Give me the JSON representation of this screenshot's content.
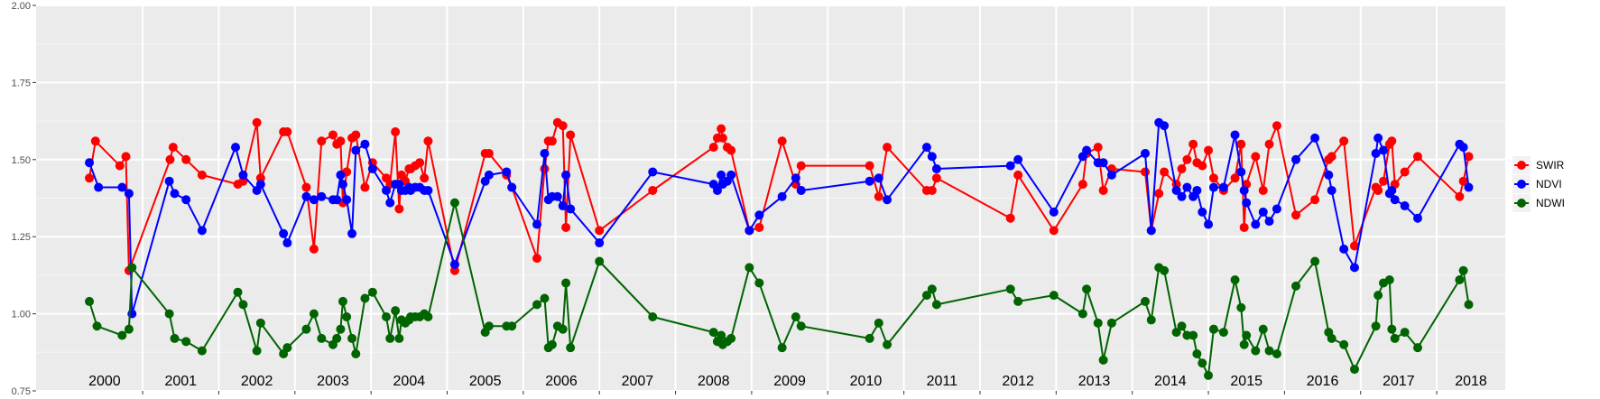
{
  "chart_data": {
    "type": "line",
    "title": "",
    "xlabel": "",
    "ylabel": "",
    "xlim": [
      1999.6,
      2018.9
    ],
    "ylim": [
      0.75,
      2.0
    ],
    "y_ticks": [
      0.75,
      1.0,
      1.25,
      1.5,
      1.75,
      2.0
    ],
    "y_tick_labels": [
      "0.75",
      "1.00",
      "1.25",
      "1.50",
      "1.75",
      "2.00"
    ],
    "year_bands": [
      2000,
      2001,
      2002,
      2003,
      2004,
      2005,
      2006,
      2007,
      2008,
      2009,
      2010,
      2011,
      2012,
      2013,
      2014,
      2015,
      2016,
      2017,
      2018
    ],
    "year_labels": [
      "2000",
      "2001",
      "2002",
      "2003",
      "2004",
      "2005",
      "2006",
      "2007",
      "2008",
      "2009",
      "2010",
      "2011",
      "2012",
      "2013",
      "2014",
      "2015",
      "2016",
      "2017",
      "2018"
    ],
    "grid": true,
    "legend_position": "right",
    "series": [
      {
        "name": "SWIR",
        "color": "#ff0000",
        "x": [
          2000.3,
          2000.38,
          2000.7,
          2000.78,
          2000.82,
          2001.36,
          2001.4,
          2001.57,
          2001.78,
          2002.25,
          2002.32,
          2002.5,
          2002.55,
          2002.85,
          2002.9,
          2003.15,
          2003.25,
          2003.35,
          2003.5,
          2003.55,
          2003.6,
          2003.63,
          2003.68,
          2003.75,
          2003.8,
          2003.92,
          2004.02,
          2004.2,
          2004.25,
          2004.32,
          2004.37,
          2004.4,
          2004.45,
          2004.5,
          2004.52,
          2004.58,
          2004.64,
          2004.7,
          2004.75,
          2005.1,
          2005.5,
          2005.55,
          2005.78,
          2005.85,
          2006.18,
          2006.28,
          2006.33,
          2006.38,
          2006.45,
          2006.52,
          2006.56,
          2006.62,
          2007.0,
          2007.7,
          2008.5,
          2008.55,
          2008.6,
          2008.62,
          2008.68,
          2008.73,
          2008.97,
          2009.1,
          2009.4,
          2009.58,
          2009.65,
          2010.55,
          2010.67,
          2010.78,
          2011.3,
          2011.37,
          2011.43,
          2012.4,
          2012.5,
          2012.97,
          2013.35,
          2013.4,
          2013.55,
          2013.62,
          2013.73,
          2014.17,
          2014.25,
          2014.35,
          2014.42,
          2014.58,
          2014.65,
          2014.72,
          2014.8,
          2014.85,
          2014.92,
          2015.0,
          2015.07,
          2015.2,
          2015.35,
          2015.43,
          2015.47,
          2015.5,
          2015.62,
          2015.72,
          2015.8,
          2015.9,
          2016.15,
          2016.4,
          2016.58,
          2016.62,
          2016.78,
          2016.92,
          2017.2,
          2017.23,
          2017.3,
          2017.38,
          2017.41,
          2017.45,
          2017.58,
          2017.75,
          2018.3,
          2018.35,
          2018.42
        ],
        "y": [
          1.44,
          1.56,
          1.48,
          1.51,
          1.14,
          1.5,
          1.54,
          1.5,
          1.45,
          1.42,
          1.43,
          1.62,
          1.44,
          1.59,
          1.59,
          1.41,
          1.21,
          1.56,
          1.58,
          1.55,
          1.56,
          1.36,
          1.46,
          1.57,
          1.58,
          1.41,
          1.49,
          1.44,
          1.42,
          1.59,
          1.34,
          1.45,
          1.43,
          1.47,
          1.47,
          1.48,
          1.49,
          1.44,
          1.56,
          1.14,
          1.52,
          1.52,
          1.45,
          1.41,
          1.18,
          1.47,
          1.56,
          1.56,
          1.62,
          1.61,
          1.28,
          1.58,
          1.27,
          1.4,
          1.54,
          1.57,
          1.6,
          1.57,
          1.54,
          1.53,
          1.27,
          1.28,
          1.56,
          1.42,
          1.48,
          1.48,
          1.38,
          1.54,
          1.4,
          1.4,
          1.44,
          1.31,
          1.45,
          1.27,
          1.42,
          1.52,
          1.54,
          1.4,
          1.47,
          1.46,
          1.27,
          1.39,
          1.46,
          1.42,
          1.47,
          1.5,
          1.55,
          1.49,
          1.48,
          1.53,
          1.44,
          1.4,
          1.44,
          1.55,
          1.28,
          1.42,
          1.51,
          1.4,
          1.55,
          1.61,
          1.32,
          1.37,
          1.5,
          1.51,
          1.56,
          1.22,
          1.41,
          1.4,
          1.43,
          1.55,
          1.56,
          1.42,
          1.46,
          1.51,
          1.38,
          1.43,
          1.51
        ]
      },
      {
        "name": "NDVI",
        "color": "#0000ff",
        "x": [
          2000.3,
          2000.42,
          2000.73,
          2000.82,
          2000.86,
          2001.35,
          2001.42,
          2001.57,
          2001.78,
          2002.22,
          2002.32,
          2002.5,
          2002.55,
          2002.85,
          2002.9,
          2003.15,
          2003.25,
          2003.35,
          2003.5,
          2003.55,
          2003.6,
          2003.63,
          2003.68,
          2003.75,
          2003.8,
          2003.92,
          2004.02,
          2004.2,
          2004.25,
          2004.32,
          2004.37,
          2004.4,
          2004.45,
          2004.5,
          2004.52,
          2004.58,
          2004.64,
          2004.7,
          2004.75,
          2005.1,
          2005.5,
          2005.55,
          2005.78,
          2005.85,
          2006.18,
          2006.28,
          2006.33,
          2006.38,
          2006.45,
          2006.52,
          2006.56,
          2006.62,
          2007.0,
          2007.7,
          2008.5,
          2008.55,
          2008.6,
          2008.62,
          2008.68,
          2008.73,
          2008.97,
          2009.1,
          2009.4,
          2009.58,
          2009.65,
          2010.55,
          2010.67,
          2010.78,
          2011.3,
          2011.37,
          2011.43,
          2012.4,
          2012.5,
          2012.97,
          2013.35,
          2013.4,
          2013.55,
          2013.62,
          2013.73,
          2014.17,
          2014.25,
          2014.35,
          2014.42,
          2014.58,
          2014.65,
          2014.72,
          2014.8,
          2014.85,
          2014.92,
          2015.0,
          2015.07,
          2015.2,
          2015.35,
          2015.43,
          2015.47,
          2015.5,
          2015.62,
          2015.72,
          2015.8,
          2015.9,
          2016.15,
          2016.4,
          2016.58,
          2016.62,
          2016.78,
          2016.92,
          2017.2,
          2017.23,
          2017.3,
          2017.38,
          2017.41,
          2017.45,
          2017.58,
          2017.75,
          2018.3,
          2018.35,
          2018.42
        ],
        "y": [
          1.49,
          1.41,
          1.41,
          1.39,
          1.0,
          1.43,
          1.39,
          1.37,
          1.27,
          1.54,
          1.45,
          1.4,
          1.42,
          1.26,
          1.23,
          1.38,
          1.37,
          1.38,
          1.37,
          1.37,
          1.45,
          1.42,
          1.37,
          1.26,
          1.53,
          1.55,
          1.47,
          1.4,
          1.36,
          1.42,
          1.42,
          1.4,
          1.4,
          1.41,
          1.4,
          1.41,
          1.41,
          1.4,
          1.4,
          1.16,
          1.43,
          1.45,
          1.46,
          1.41,
          1.29,
          1.52,
          1.37,
          1.38,
          1.38,
          1.35,
          1.45,
          1.34,
          1.23,
          1.46,
          1.42,
          1.4,
          1.45,
          1.42,
          1.43,
          1.45,
          1.27,
          1.32,
          1.38,
          1.44,
          1.4,
          1.43,
          1.44,
          1.37,
          1.54,
          1.51,
          1.47,
          1.48,
          1.5,
          1.33,
          1.51,
          1.53,
          1.49,
          1.49,
          1.45,
          1.52,
          1.27,
          1.62,
          1.61,
          1.4,
          1.38,
          1.41,
          1.38,
          1.4,
          1.33,
          1.29,
          1.41,
          1.41,
          1.58,
          1.46,
          1.4,
          1.36,
          1.29,
          1.33,
          1.3,
          1.34,
          1.5,
          1.57,
          1.45,
          1.4,
          1.21,
          1.15,
          1.52,
          1.57,
          1.53,
          1.39,
          1.4,
          1.37,
          1.35,
          1.31,
          1.55,
          1.54,
          1.41
        ]
      },
      {
        "name": "NDWI",
        "color": "#006400",
        "x": [
          2000.3,
          2000.4,
          2000.73,
          2000.82,
          2000.86,
          2001.35,
          2001.42,
          2001.57,
          2001.78,
          2002.25,
          2002.32,
          2002.5,
          2002.55,
          2002.85,
          2002.9,
          2003.15,
          2003.25,
          2003.35,
          2003.5,
          2003.55,
          2003.6,
          2003.63,
          2003.68,
          2003.75,
          2003.8,
          2003.92,
          2004.02,
          2004.2,
          2004.25,
          2004.32,
          2004.37,
          2004.4,
          2004.45,
          2004.5,
          2004.52,
          2004.58,
          2004.64,
          2004.7,
          2004.75,
          2005.1,
          2005.5,
          2005.55,
          2005.78,
          2005.85,
          2006.18,
          2006.28,
          2006.33,
          2006.38,
          2006.45,
          2006.52,
          2006.56,
          2006.62,
          2007.0,
          2007.7,
          2008.5,
          2008.55,
          2008.6,
          2008.62,
          2008.68,
          2008.73,
          2008.97,
          2009.1,
          2009.4,
          2009.58,
          2009.65,
          2010.55,
          2010.67,
          2010.78,
          2011.3,
          2011.37,
          2011.43,
          2012.4,
          2012.5,
          2012.97,
          2013.35,
          2013.4,
          2013.55,
          2013.62,
          2013.73,
          2014.17,
          2014.25,
          2014.35,
          2014.42,
          2014.58,
          2014.65,
          2014.72,
          2014.8,
          2014.85,
          2014.92,
          2015.0,
          2015.07,
          2015.2,
          2015.35,
          2015.43,
          2015.47,
          2015.5,
          2015.62,
          2015.72,
          2015.8,
          2015.9,
          2016.15,
          2016.4,
          2016.58,
          2016.62,
          2016.78,
          2016.92,
          2017.2,
          2017.23,
          2017.3,
          2017.38,
          2017.41,
          2017.45,
          2017.58,
          2017.75,
          2018.3,
          2018.35,
          2018.42
        ],
        "y": [
          1.04,
          0.96,
          0.93,
          0.95,
          1.15,
          1.0,
          0.92,
          0.91,
          0.88,
          1.07,
          1.03,
          0.88,
          0.97,
          0.87,
          0.89,
          0.95,
          1.0,
          0.92,
          0.9,
          0.92,
          0.95,
          1.04,
          0.99,
          0.92,
          0.87,
          1.05,
          1.07,
          0.99,
          0.92,
          1.01,
          0.92,
          0.98,
          0.97,
          0.98,
          0.99,
          0.99,
          0.99,
          1.0,
          0.99,
          1.36,
          0.94,
          0.96,
          0.96,
          0.96,
          1.03,
          1.05,
          0.89,
          0.9,
          0.96,
          0.95,
          1.1,
          0.89,
          1.17,
          0.99,
          0.94,
          0.91,
          0.93,
          0.9,
          0.91,
          0.92,
          1.15,
          1.1,
          0.89,
          0.99,
          0.96,
          0.92,
          0.97,
          0.9,
          1.06,
          1.08,
          1.03,
          1.08,
          1.04,
          1.06,
          1.0,
          1.08,
          0.97,
          0.85,
          0.97,
          1.04,
          0.98,
          1.15,
          1.14,
          0.94,
          0.96,
          0.93,
          0.93,
          0.87,
          0.84,
          0.8,
          0.95,
          0.94,
          1.11,
          1.02,
          0.9,
          0.93,
          0.88,
          0.95,
          0.88,
          0.87,
          1.09,
          1.17,
          0.94,
          0.92,
          0.9,
          0.82,
          0.96,
          1.06,
          1.1,
          1.11,
          0.95,
          0.92,
          0.94,
          0.89,
          1.11,
          1.14,
          1.03
        ]
      }
    ]
  }
}
